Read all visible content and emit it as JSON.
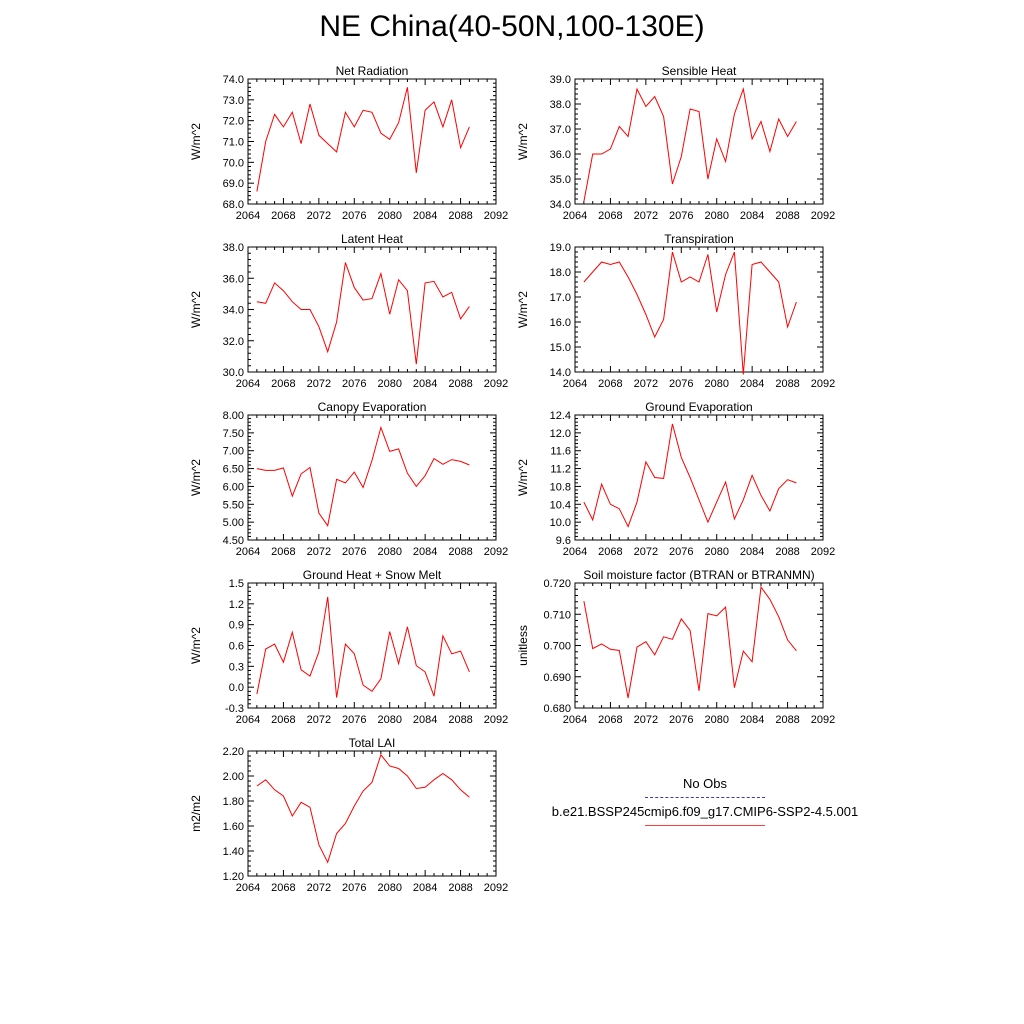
{
  "title": "NE China(40-50N,100-130E)",
  "colors": {
    "line": "#ff0000",
    "obs": "#3b3bb0"
  },
  "legend": {
    "obs_label": "No Obs",
    "model_label": "b.e21.BSSP245cmip6.f09_g17.CMIP6-SSP2-4.5.001"
  },
  "chart_data": [
    {
      "type": "line",
      "title": "Net Radiation",
      "ylabel": "W/m^2",
      "xlim": [
        2064,
        2092
      ],
      "ylim": [
        68.0,
        74.0
      ],
      "xticks": [
        2064,
        2068,
        2072,
        2076,
        2080,
        2084,
        2088,
        2092
      ],
      "xticklabels": [
        "2064",
        "2068",
        "2072",
        "2076",
        "2080",
        "2084",
        "2088",
        "2092"
      ],
      "yticks": [
        68.0,
        69.0,
        70.0,
        71.0,
        72.0,
        73.0,
        74.0
      ],
      "yticklabels": [
        "68.0",
        "69.0",
        "70.0",
        "71.0",
        "72.0",
        "73.0",
        "74.0"
      ],
      "x": [
        2065,
        2066,
        2067,
        2068,
        2069,
        2070,
        2071,
        2072,
        2073,
        2074,
        2075,
        2076,
        2077,
        2078,
        2079,
        2080,
        2081,
        2082,
        2083,
        2084,
        2085,
        2086,
        2087,
        2088,
        2089
      ],
      "y": [
        68.6,
        71.0,
        72.3,
        71.7,
        72.4,
        70.9,
        72.8,
        71.3,
        70.9,
        70.5,
        72.4,
        71.7,
        72.5,
        72.4,
        71.4,
        71.1,
        71.9,
        73.6,
        69.5,
        72.5,
        72.9,
        71.7,
        73.0,
        70.7,
        71.7
      ]
    },
    {
      "type": "line",
      "title": "Sensible Heat",
      "ylabel": "W/m^2",
      "xlim": [
        2064,
        2092
      ],
      "ylim": [
        34.0,
        39.0
      ],
      "xticks": [
        2064,
        2068,
        2072,
        2076,
        2080,
        2084,
        2088,
        2092
      ],
      "xticklabels": [
        "2064",
        "2068",
        "2072",
        "2076",
        "2080",
        "2084",
        "2088",
        "2092"
      ],
      "yticks": [
        34.0,
        35.0,
        36.0,
        37.0,
        38.0,
        39.0
      ],
      "yticklabels": [
        "34.0",
        "35.0",
        "36.0",
        "37.0",
        "38.0",
        "39.0"
      ],
      "x": [
        2065,
        2066,
        2067,
        2068,
        2069,
        2070,
        2071,
        2072,
        2073,
        2074,
        2075,
        2076,
        2077,
        2078,
        2079,
        2080,
        2081,
        2082,
        2083,
        2084,
        2085,
        2086,
        2087,
        2088,
        2089
      ],
      "y": [
        34.1,
        36.0,
        36.0,
        36.2,
        37.1,
        36.7,
        38.6,
        37.9,
        38.3,
        37.5,
        34.8,
        35.9,
        37.8,
        37.7,
        35.0,
        36.6,
        35.7,
        37.6,
        38.6,
        36.6,
        37.3,
        36.1,
        37.4,
        36.7,
        37.3
      ]
    },
    {
      "type": "line",
      "title": "Latent Heat",
      "ylabel": "W/m^2",
      "xlim": [
        2064,
        2092
      ],
      "ylim": [
        30.0,
        38.0
      ],
      "xticks": [
        2064,
        2068,
        2072,
        2076,
        2080,
        2084,
        2088,
        2092
      ],
      "xticklabels": [
        "2064",
        "2068",
        "2072",
        "2076",
        "2080",
        "2084",
        "2088",
        "2092"
      ],
      "yticks": [
        30.0,
        32.0,
        34.0,
        36.0,
        38.0
      ],
      "yticklabels": [
        "30.0",
        "32.0",
        "34.0",
        "36.0",
        "38.0"
      ],
      "x": [
        2065,
        2066,
        2067,
        2068,
        2069,
        2070,
        2071,
        2072,
        2073,
        2074,
        2075,
        2076,
        2077,
        2078,
        2079,
        2080,
        2081,
        2082,
        2083,
        2084,
        2085,
        2086,
        2087,
        2088,
        2089
      ],
      "y": [
        34.5,
        34.4,
        35.7,
        35.2,
        34.5,
        34.0,
        34.0,
        32.9,
        31.3,
        33.2,
        37.0,
        35.4,
        34.6,
        34.7,
        36.3,
        33.7,
        35.9,
        35.2,
        30.5,
        35.7,
        35.8,
        34.8,
        35.1,
        33.4,
        34.2
      ]
    },
    {
      "type": "line",
      "title": "Transpiration",
      "ylabel": "W/m^2",
      "xlim": [
        2064,
        2092
      ],
      "ylim": [
        14.0,
        19.0
      ],
      "xticks": [
        2064,
        2068,
        2072,
        2076,
        2080,
        2084,
        2088,
        2092
      ],
      "xticklabels": [
        "2064",
        "2068",
        "2072",
        "2076",
        "2080",
        "2084",
        "2088",
        "2092"
      ],
      "yticks": [
        14.0,
        15.0,
        16.0,
        17.0,
        18.0,
        19.0
      ],
      "yticklabels": [
        "14.0",
        "15.0",
        "16.0",
        "17.0",
        "18.0",
        "19.0"
      ],
      "x": [
        2065,
        2066,
        2067,
        2068,
        2069,
        2070,
        2071,
        2072,
        2073,
        2074,
        2075,
        2076,
        2077,
        2078,
        2079,
        2080,
        2081,
        2082,
        2083,
        2084,
        2085,
        2086,
        2087,
        2088,
        2089
      ],
      "y": [
        17.6,
        18.0,
        18.4,
        18.3,
        18.4,
        17.8,
        17.1,
        16.3,
        15.4,
        16.1,
        18.8,
        17.6,
        17.8,
        17.6,
        18.7,
        16.4,
        17.9,
        18.8,
        13.9,
        18.3,
        18.4,
        18.0,
        17.6,
        15.8,
        16.8
      ]
    },
    {
      "type": "line",
      "title": "Canopy Evaporation",
      "ylabel": "W/m^2",
      "xlim": [
        2064,
        2092
      ],
      "ylim": [
        4.5,
        8.0
      ],
      "xticks": [
        2064,
        2068,
        2072,
        2076,
        2080,
        2084,
        2088,
        2092
      ],
      "xticklabels": [
        "2064",
        "2068",
        "2072",
        "2076",
        "2080",
        "2084",
        "2088",
        "2092"
      ],
      "yticks": [
        4.5,
        5.0,
        5.5,
        6.0,
        6.5,
        7.0,
        7.5,
        8.0
      ],
      "yticklabels": [
        "4.50",
        "5.00",
        "5.50",
        "6.00",
        "6.50",
        "7.00",
        "7.50",
        "8.00"
      ],
      "x": [
        2065,
        2066,
        2067,
        2068,
        2069,
        2070,
        2071,
        2072,
        2073,
        2074,
        2075,
        2076,
        2077,
        2078,
        2079,
        2080,
        2081,
        2082,
        2083,
        2084,
        2085,
        2086,
        2087,
        2088,
        2089
      ],
      "y": [
        6.5,
        6.45,
        6.45,
        6.52,
        5.73,
        6.35,
        6.53,
        5.25,
        4.9,
        6.2,
        6.1,
        6.4,
        5.97,
        6.73,
        7.65,
        6.98,
        7.05,
        6.37,
        6.0,
        6.3,
        6.78,
        6.62,
        6.75,
        6.7,
        6.6
      ]
    },
    {
      "type": "line",
      "title": "Ground Evaporation",
      "ylabel": "W/m^2",
      "xlim": [
        2064,
        2092
      ],
      "ylim": [
        9.6,
        12.4
      ],
      "xticks": [
        2064,
        2068,
        2072,
        2076,
        2080,
        2084,
        2088,
        2092
      ],
      "xticklabels": [
        "2064",
        "2068",
        "2072",
        "2076",
        "2080",
        "2084",
        "2088",
        "2092"
      ],
      "yticks": [
        9.6,
        10.0,
        10.4,
        10.8,
        11.2,
        11.6,
        12.0,
        12.4
      ],
      "yticklabels": [
        "9.6",
        "10.0",
        "10.4",
        "10.8",
        "11.2",
        "11.6",
        "12.0",
        "12.4"
      ],
      "x": [
        2065,
        2066,
        2067,
        2068,
        2069,
        2070,
        2071,
        2072,
        2073,
        2074,
        2075,
        2076,
        2077,
        2078,
        2079,
        2080,
        2081,
        2082,
        2083,
        2084,
        2085,
        2086,
        2087,
        2088,
        2089
      ],
      "y": [
        10.45,
        10.05,
        10.85,
        10.4,
        10.3,
        9.9,
        10.45,
        11.35,
        11.0,
        10.98,
        12.2,
        11.45,
        11.0,
        10.5,
        10.0,
        10.45,
        10.9,
        10.07,
        10.5,
        11.05,
        10.6,
        10.25,
        10.75,
        10.95,
        10.88
      ]
    },
    {
      "type": "line",
      "title": "Ground Heat + Snow Melt",
      "ylabel": "W/m^2",
      "xlim": [
        2064,
        2092
      ],
      "ylim": [
        -0.3,
        1.5
      ],
      "xticks": [
        2064,
        2068,
        2072,
        2076,
        2080,
        2084,
        2088,
        2092
      ],
      "xticklabels": [
        "2064",
        "2068",
        "2072",
        "2076",
        "2080",
        "2084",
        "2088",
        "2092"
      ],
      "yticks": [
        -0.3,
        0.0,
        0.3,
        0.6,
        0.9,
        1.2,
        1.5
      ],
      "yticklabels": [
        "-0.3",
        "0.0",
        "0.3",
        "0.6",
        "0.9",
        "1.2",
        "1.5"
      ],
      "x": [
        2065,
        2066,
        2067,
        2068,
        2069,
        2070,
        2071,
        2072,
        2073,
        2074,
        2075,
        2076,
        2077,
        2078,
        2079,
        2080,
        2081,
        2082,
        2083,
        2084,
        2085,
        2086,
        2087,
        2088,
        2089
      ],
      "y": [
        -0.1,
        0.55,
        0.62,
        0.36,
        0.79,
        0.25,
        0.16,
        0.51,
        1.3,
        -0.15,
        0.62,
        0.48,
        0.03,
        -0.06,
        0.12,
        0.8,
        0.34,
        0.87,
        0.31,
        0.22,
        -0.13,
        0.74,
        0.48,
        0.52,
        0.22
      ]
    },
    {
      "type": "line",
      "title": "Soil moisture factor (BTRAN or BTRANMN)",
      "ylabel": "unitless",
      "xlim": [
        2064,
        2092
      ],
      "ylim": [
        0.68,
        0.72
      ],
      "xticks": [
        2064,
        2068,
        2072,
        2076,
        2080,
        2084,
        2088,
        2092
      ],
      "xticklabels": [
        "2064",
        "2068",
        "2072",
        "2076",
        "2080",
        "2084",
        "2088",
        "2092"
      ],
      "yticks": [
        0.68,
        0.69,
        0.7,
        0.71,
        0.72
      ],
      "yticklabels": [
        "0.680",
        "0.690",
        "0.700",
        "0.710",
        "0.720"
      ],
      "x": [
        2065,
        2066,
        2067,
        2068,
        2069,
        2070,
        2071,
        2072,
        2073,
        2074,
        2075,
        2076,
        2077,
        2078,
        2079,
        2080,
        2081,
        2082,
        2083,
        2084,
        2085,
        2086,
        2087,
        2088,
        2089
      ],
      "y": [
        0.7142,
        0.699,
        0.7005,
        0.6988,
        0.6984,
        0.6832,
        0.6995,
        0.7012,
        0.697,
        0.7028,
        0.702,
        0.7085,
        0.7048,
        0.6855,
        0.7102,
        0.7095,
        0.7123,
        0.6865,
        0.6982,
        0.6948,
        0.7187,
        0.7148,
        0.7092,
        0.7018,
        0.6983
      ]
    },
    {
      "type": "line",
      "title": "Total LAI",
      "ylabel": "m2/m2",
      "xlim": [
        2064,
        2092
      ],
      "ylim": [
        1.2,
        2.2
      ],
      "xticks": [
        2064,
        2068,
        2072,
        2076,
        2080,
        2084,
        2088,
        2092
      ],
      "xticklabels": [
        "2064",
        "2068",
        "2072",
        "2076",
        "2080",
        "2084",
        "2088",
        "2092"
      ],
      "yticks": [
        1.2,
        1.4,
        1.6,
        1.8,
        2.0,
        2.2
      ],
      "yticklabels": [
        "1.20",
        "1.40",
        "1.60",
        "1.80",
        "2.00",
        "2.20"
      ],
      "x": [
        2065,
        2066,
        2067,
        2068,
        2069,
        2070,
        2071,
        2072,
        2073,
        2074,
        2075,
        2076,
        2077,
        2078,
        2079,
        2080,
        2081,
        2082,
        2083,
        2084,
        2085,
        2086,
        2087,
        2088,
        2089
      ],
      "y": [
        1.92,
        1.97,
        1.89,
        1.84,
        1.68,
        1.79,
        1.75,
        1.45,
        1.31,
        1.54,
        1.62,
        1.76,
        1.88,
        1.95,
        2.17,
        2.08,
        2.06,
        2.0,
        1.9,
        1.91,
        1.97,
        2.02,
        1.97,
        1.89,
        1.83
      ]
    }
  ]
}
